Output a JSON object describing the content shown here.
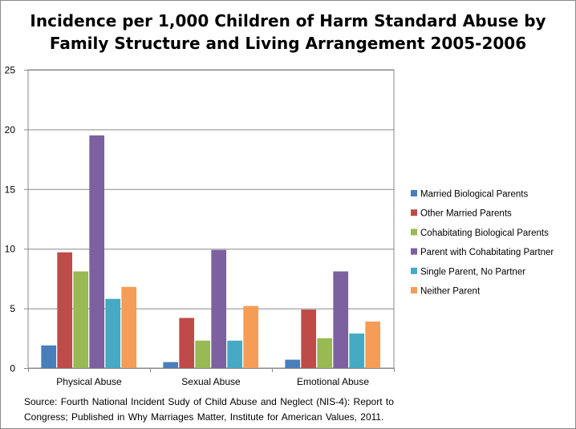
{
  "chart_data": {
    "type": "bar",
    "title": "Incidence per 1,000 Children of Harm Standard Abuse by Family Structure and Living Arrangement 2005-2006",
    "categories": [
      "Physical Abuse",
      "Sexual Abuse",
      "Emotional Abuse"
    ],
    "series": [
      {
        "name": "Married Biological Parents",
        "color": "#4a7ebb",
        "values": [
          1.9,
          0.5,
          0.7
        ]
      },
      {
        "name": "Other Married Parents",
        "color": "#be4b48",
        "values": [
          9.7,
          4.2,
          4.9
        ]
      },
      {
        "name": "Cohabitating Biological Parents",
        "color": "#98b954",
        "values": [
          8.1,
          2.3,
          2.5
        ]
      },
      {
        "name": "Parent with Cohabitating Partner",
        "color": "#7d60a0",
        "values": [
          19.5,
          9.9,
          8.1
        ]
      },
      {
        "name": "Single Parent, No Partner",
        "color": "#46aac4",
        "values": [
          5.8,
          2.3,
          2.9
        ]
      },
      {
        "name": "Neither Parent",
        "color": "#f59d56",
        "values": [
          6.8,
          5.2,
          3.9
        ]
      }
    ],
    "ylim": [
      0,
      25
    ],
    "yticks": [
      0,
      5,
      10,
      15,
      20,
      25
    ],
    "grid": true,
    "legend_position": "right",
    "source": "Source: Fourth National Incident Sudy of Child Abuse and Neglect (NIS-4):  Report to Congress; Published in Why Marriages Matter, Institute for American Values, 2011."
  }
}
